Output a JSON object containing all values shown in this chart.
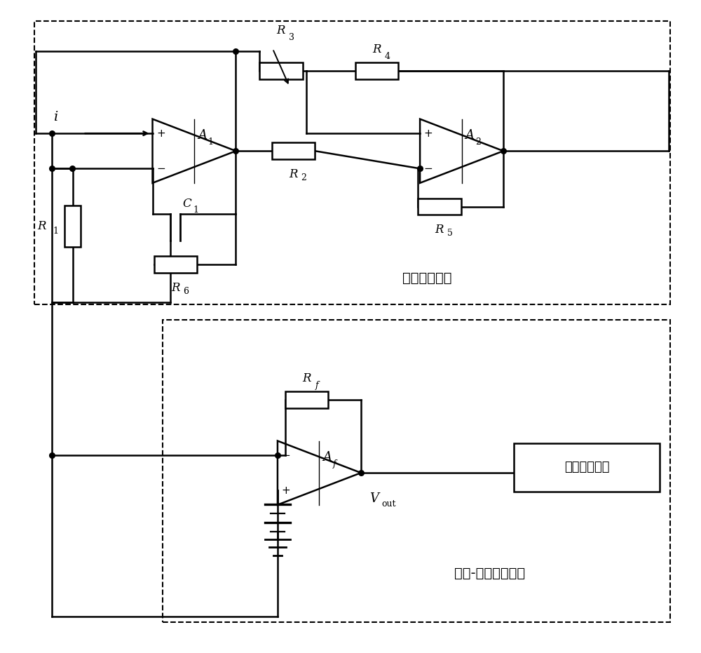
{
  "bg": "#ffffff",
  "lc": "#000000",
  "label_box1": "虚拟电感模块",
  "label_box2": "电流-电压转换电路",
  "label_signal": "信号后续处理",
  "label_i": "i",
  "label_Vout": "V",
  "label_Vout_sub": "out",
  "label_A1": "A",
  "sub_A1": "1",
  "label_A2": "A",
  "sub_A2": "2",
  "label_Af": "A",
  "sub_Af": "f",
  "label_R1": "R",
  "sub_R1": "1",
  "label_R2": "R",
  "sub_R2": "2",
  "label_R3": "R",
  "sub_R3": "3",
  "label_R4": "R",
  "sub_R4": "4",
  "label_R5": "R",
  "sub_R5": "5",
  "label_R6": "R",
  "sub_R6": "6",
  "label_Rf": "R",
  "sub_Rf": "f",
  "label_C1": "C",
  "sub_C1": "1"
}
